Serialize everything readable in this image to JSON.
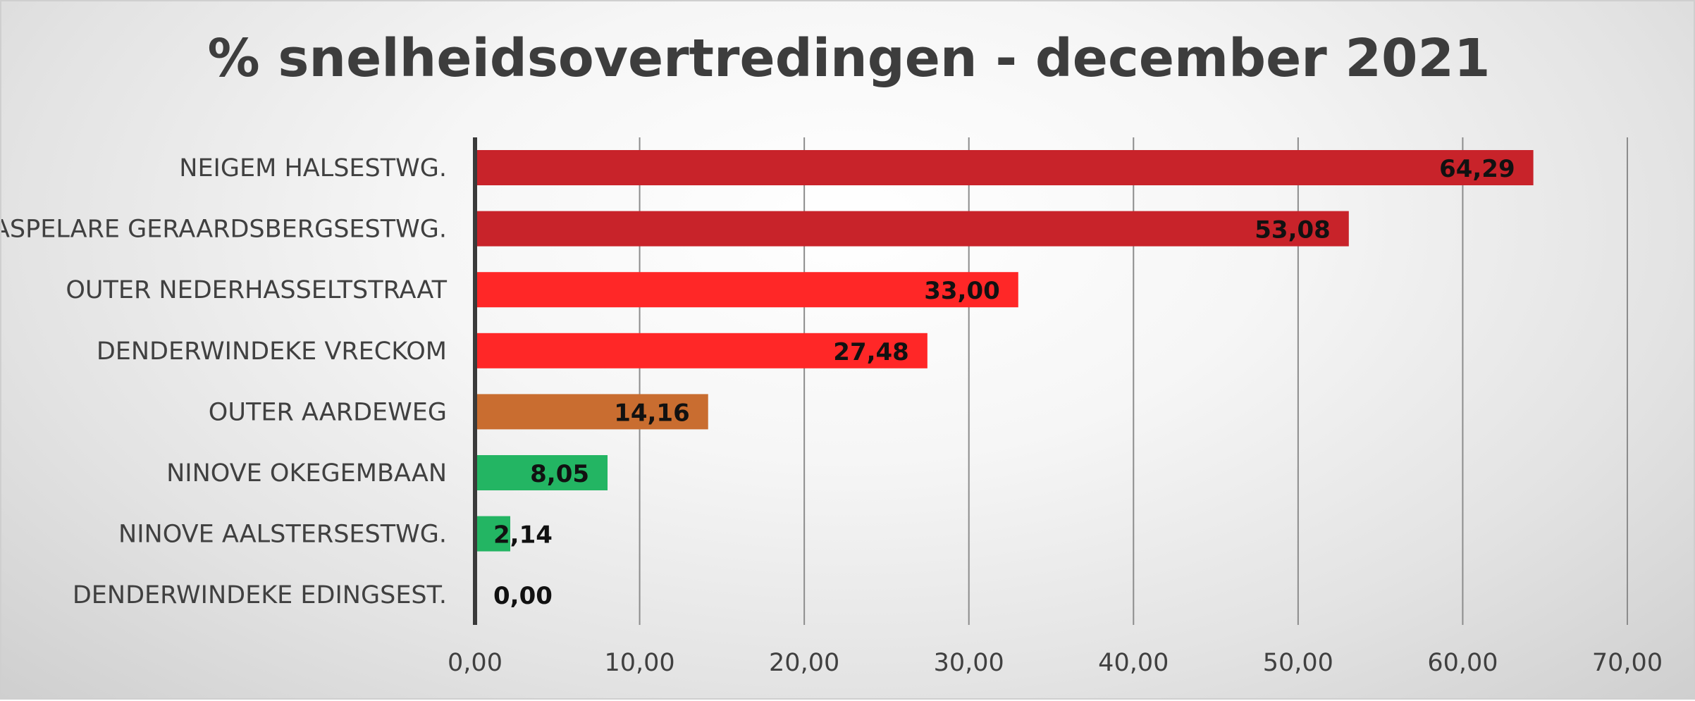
{
  "chart_data": {
    "type": "bar",
    "orientation": "horizontal",
    "title": "% snelheidsovertredingen - december 2021",
    "xlabel": "",
    "ylabel": "",
    "xlim": [
      0,
      70
    ],
    "x_ticks": [
      "0,00",
      "10,00",
      "20,00",
      "30,00",
      "40,00",
      "50,00",
      "60,00",
      "70,00"
    ],
    "x_tick_values": [
      0,
      10,
      20,
      30,
      40,
      50,
      60,
      70
    ],
    "grid": true,
    "legend": "none",
    "categories": [
      "NEIGEM HALSESTWG.",
      "ASPELARE GERAARDSBERGSESTWG.",
      "OUTER NEDERHASSELTSTRAAT",
      "DENDERWINDEKE VRECKOM",
      "OUTER AARDEWEG",
      "NINOVE OKEGEMBAAN",
      "NINOVE AALSTERSESTWG.",
      "DENDERWINDEKE EDINGSEST."
    ],
    "values": [
      64.29,
      53.08,
      33.0,
      27.48,
      14.16,
      8.05,
      2.14,
      0.0
    ],
    "value_labels": [
      "64,29",
      "53,08",
      "33,00",
      "27,48",
      "14,16",
      "8,05",
      "2,14",
      "0,00"
    ],
    "bar_colors": [
      "#c8232a",
      "#c8232a",
      "#ff2727",
      "#ff2727",
      "#c96d30",
      "#23b563",
      "#23b563",
      "#23b563"
    ]
  }
}
